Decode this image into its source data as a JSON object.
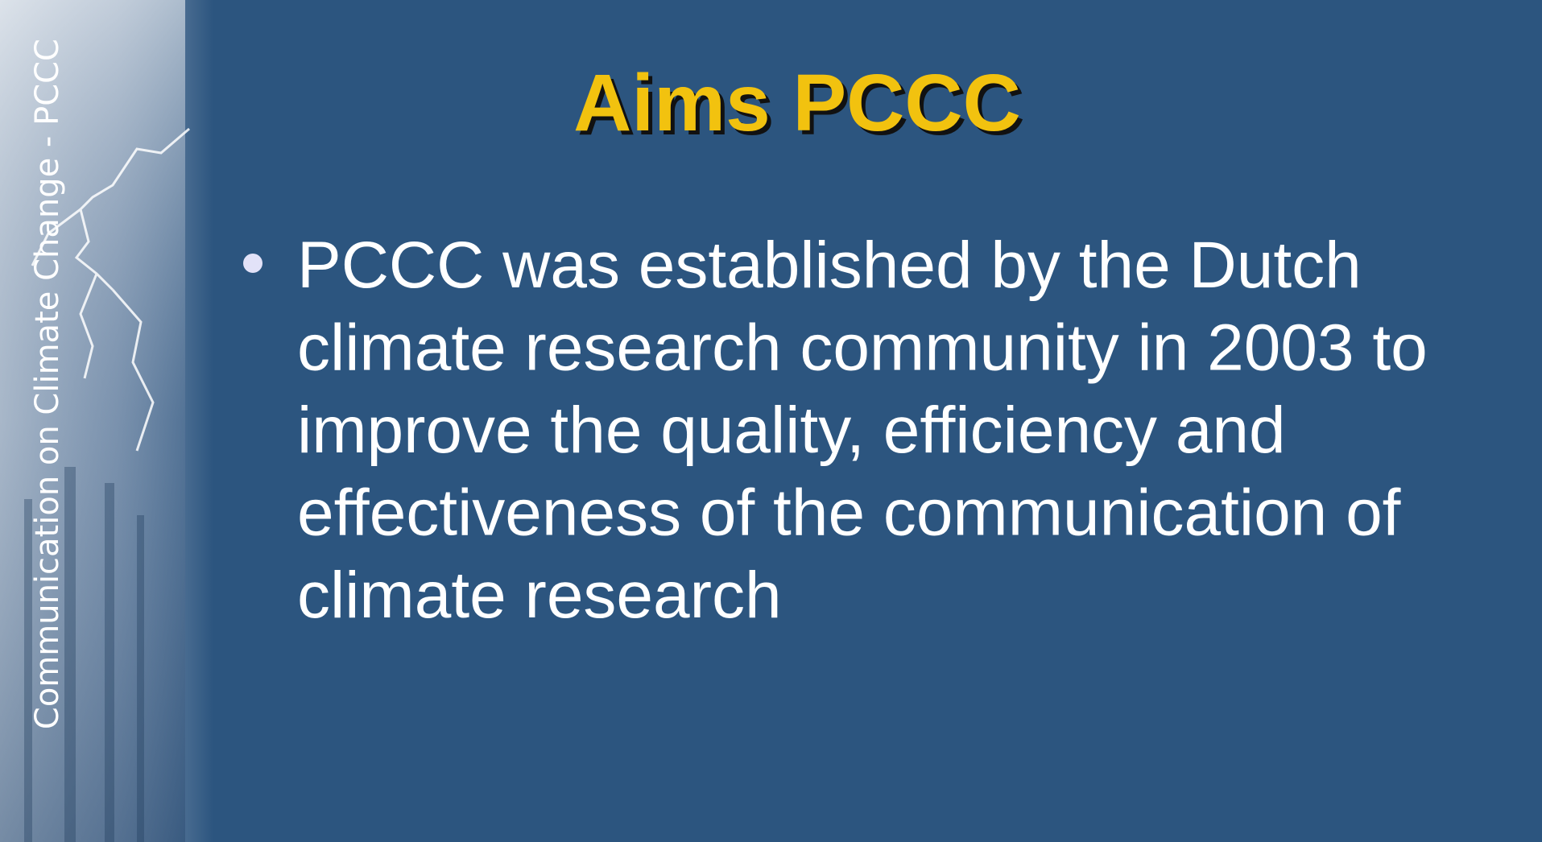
{
  "slide": {
    "title": "Aims PCCC",
    "sidebar_text": "Communication on Climate Change - PCCC",
    "bullet": {
      "lines": [
        "PCCC was established by the Dutch",
        "climate research community in 2003 to",
        "improve the quality, efficiency and",
        "effectiveness of the communication of",
        "climate research"
      ]
    }
  }
}
